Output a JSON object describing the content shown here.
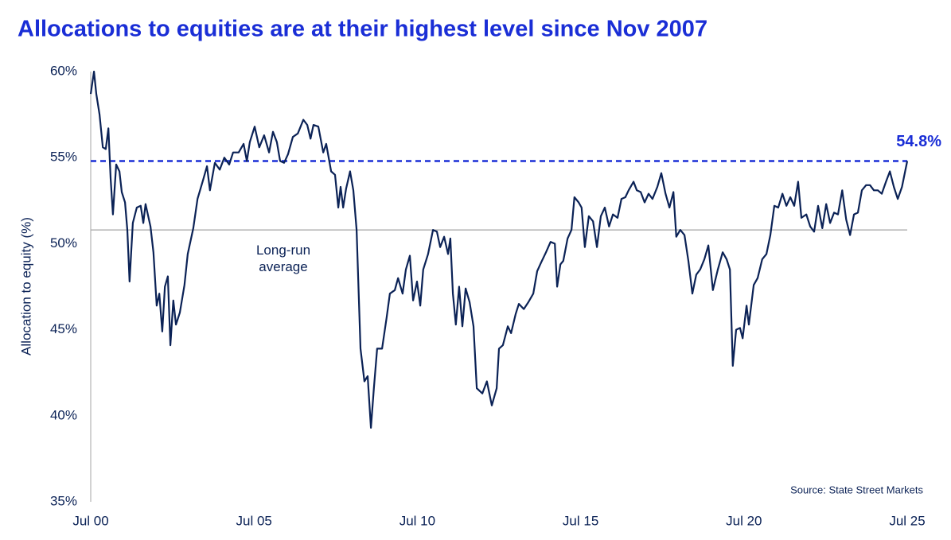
{
  "chart_data": {
    "type": "line",
    "title": "Allocations to equities are at their highest level since Nov 2007",
    "y_label": "Allocation to equity (%)",
    "source": "Source: State Street Markets",
    "xlim": [
      2000.5,
      2025.5
    ],
    "ylim": [
      35,
      60
    ],
    "xticks": [
      {
        "value": 2000.5,
        "label": "Jul 00"
      },
      {
        "value": 2005.5,
        "label": "Jul 05"
      },
      {
        "value": 2010.5,
        "label": "Jul 10"
      },
      {
        "value": 2015.5,
        "label": "Jul 15"
      },
      {
        "value": 2020.5,
        "label": "Jul 20"
      },
      {
        "value": 2025.5,
        "label": "Jul 25"
      }
    ],
    "yticks": [
      {
        "value": 35,
        "label": "35%"
      },
      {
        "value": 40,
        "label": "40%"
      },
      {
        "value": 45,
        "label": "45%"
      },
      {
        "value": 50,
        "label": "50%"
      },
      {
        "value": 55,
        "label": "55%"
      },
      {
        "value": 60,
        "label": "60%"
      }
    ],
    "reference_lines": [
      {
        "value": 54.8,
        "label": "54.8%",
        "color": "#1a2ed6",
        "dashed": true
      },
      {
        "value": 50.8,
        "label": "Long-run average",
        "color": "#a6a6a6",
        "dashed": false
      }
    ],
    "x": [
      2000.5,
      2000.6,
      2000.67,
      2000.77,
      2000.87,
      2000.96,
      2001.04,
      2001.11,
      2001.18,
      2001.28,
      2001.38,
      2001.45,
      2001.55,
      2001.62,
      2001.69,
      2001.79,
      2001.91,
      2002.03,
      2002.11,
      2002.18,
      2002.33,
      2002.42,
      2002.52,
      2002.6,
      2002.69,
      2002.77,
      2002.86,
      2002.94,
      2003.03,
      2003.11,
      2003.23,
      2003.37,
      2003.47,
      2003.64,
      2003.77,
      2003.94,
      2004.06,
      2004.15,
      2004.3,
      2004.45,
      2004.59,
      2004.74,
      2004.86,
      2005.03,
      2005.18,
      2005.28,
      2005.37,
      2005.52,
      2005.66,
      2005.81,
      2005.96,
      2006.08,
      2006.2,
      2006.3,
      2006.42,
      2006.54,
      2006.69,
      2006.84,
      2007.01,
      2007.13,
      2007.23,
      2007.32,
      2007.47,
      2007.62,
      2007.71,
      2007.86,
      2007.98,
      2008.08,
      2008.15,
      2008.23,
      2008.32,
      2008.44,
      2008.54,
      2008.64,
      2008.76,
      2008.88,
      2008.98,
      2009.08,
      2009.17,
      2009.27,
      2009.42,
      2009.56,
      2009.66,
      2009.81,
      2009.91,
      2010.05,
      2010.15,
      2010.27,
      2010.37,
      2010.49,
      2010.59,
      2010.68,
      2010.83,
      2010.98,
      2011.1,
      2011.2,
      2011.32,
      2011.44,
      2011.51,
      2011.59,
      2011.68,
      2011.78,
      2011.88,
      2011.98,
      2012.1,
      2012.22,
      2012.32,
      2012.49,
      2012.63,
      2012.78,
      2012.93,
      2013.0,
      2013.12,
      2013.27,
      2013.37,
      2013.51,
      2013.61,
      2013.76,
      2013.9,
      2014.05,
      2014.17,
      2014.29,
      2014.44,
      2014.58,
      2014.71,
      2014.78,
      2014.88,
      2014.97,
      2015.1,
      2015.22,
      2015.31,
      2015.44,
      2015.53,
      2015.63,
      2015.75,
      2015.88,
      2016.0,
      2016.12,
      2016.24,
      2016.37,
      2016.49,
      2016.63,
      2016.75,
      2016.87,
      2016.97,
      2017.12,
      2017.22,
      2017.34,
      2017.46,
      2017.58,
      2017.7,
      2017.85,
      2017.97,
      2018.1,
      2018.22,
      2018.34,
      2018.43,
      2018.55,
      2018.68,
      2018.8,
      2018.92,
      2019.04,
      2019.16,
      2019.29,
      2019.41,
      2019.55,
      2019.7,
      2019.85,
      2019.97,
      2020.07,
      2020.16,
      2020.26,
      2020.38,
      2020.46,
      2020.58,
      2020.65,
      2020.8,
      2020.92,
      2021.06,
      2021.19,
      2021.31,
      2021.43,
      2021.55,
      2021.68,
      2021.8,
      2021.92,
      2022.04,
      2022.16,
      2022.26,
      2022.41,
      2022.53,
      2022.65,
      2022.77,
      2022.9,
      2023.02,
      2023.14,
      2023.26,
      2023.38,
      2023.51,
      2023.63,
      2023.75,
      2023.87,
      2023.99,
      2024.11,
      2024.24,
      2024.36,
      2024.48,
      2024.6,
      2024.72,
      2024.85,
      2024.97,
      2025.09,
      2025.21,
      2025.34,
      2025.5
    ],
    "series": [
      {
        "name": "Allocation to equity",
        "color": "#0b2256",
        "values": [
          58.7,
          60.0,
          58.7,
          57.5,
          55.6,
          55.5,
          56.7,
          53.8,
          51.7,
          54.6,
          54.2,
          53.0,
          52.4,
          50.8,
          47.8,
          51.2,
          52.1,
          52.2,
          51.2,
          52.3,
          51.0,
          49.5,
          46.4,
          47.1,
          44.9,
          47.5,
          48.1,
          44.1,
          46.7,
          45.3,
          46.0,
          47.6,
          49.4,
          50.9,
          52.6,
          53.7,
          54.5,
          53.1,
          54.7,
          54.3,
          55.0,
          54.6,
          55.3,
          55.3,
          55.8,
          54.8,
          55.9,
          56.8,
          55.6,
          56.3,
          55.3,
          56.5,
          55.9,
          54.8,
          54.7,
          55.2,
          56.2,
          56.4,
          57.2,
          56.9,
          56.1,
          56.9,
          56.8,
          55.3,
          55.8,
          54.2,
          54.0,
          52.1,
          53.3,
          52.1,
          53.2,
          54.2,
          53.1,
          50.8,
          43.9,
          42.0,
          42.3,
          39.3,
          41.6,
          43.9,
          43.9,
          45.7,
          47.1,
          47.3,
          48.0,
          47.1,
          48.5,
          49.3,
          46.7,
          47.8,
          46.4,
          48.5,
          49.4,
          50.8,
          50.7,
          49.8,
          50.4,
          49.4,
          50.3,
          47.1,
          45.3,
          47.5,
          45.2,
          47.4,
          46.6,
          45.2,
          41.6,
          41.3,
          42.0,
          40.6,
          41.6,
          43.9,
          44.1,
          45.2,
          44.8,
          45.9,
          46.5,
          46.2,
          46.6,
          47.1,
          48.4,
          48.9,
          49.5,
          50.1,
          50.0,
          47.5,
          48.8,
          49.0,
          50.3,
          50.8,
          52.7,
          52.4,
          52.1,
          49.8,
          51.6,
          51.3,
          49.8,
          51.6,
          52.1,
          51.0,
          51.7,
          51.5,
          52.6,
          52.7,
          53.1,
          53.6,
          53.1,
          53.0,
          52.4,
          52.9,
          52.6,
          53.3,
          54.1,
          52.9,
          52.1,
          53.0,
          50.4,
          50.8,
          50.5,
          49.0,
          47.1,
          48.2,
          48.5,
          49.1,
          49.9,
          47.3,
          48.5,
          49.5,
          49.1,
          48.5,
          42.9,
          45.0,
          45.1,
          44.5,
          46.4,
          45.3,
          47.6,
          48.0,
          49.1,
          49.4,
          50.5,
          52.2,
          52.1,
          52.9,
          52.2,
          52.7,
          52.2,
          53.6,
          51.5,
          51.7,
          51.0,
          50.7,
          52.2,
          50.9,
          52.3,
          51.2,
          51.8,
          51.7,
          53.1,
          51.4,
          50.5,
          51.7,
          51.8,
          53.1,
          53.4,
          53.4,
          53.1,
          53.1,
          52.9,
          53.6,
          54.2,
          53.3,
          52.6,
          53.3,
          54.8
        ]
      }
    ]
  }
}
